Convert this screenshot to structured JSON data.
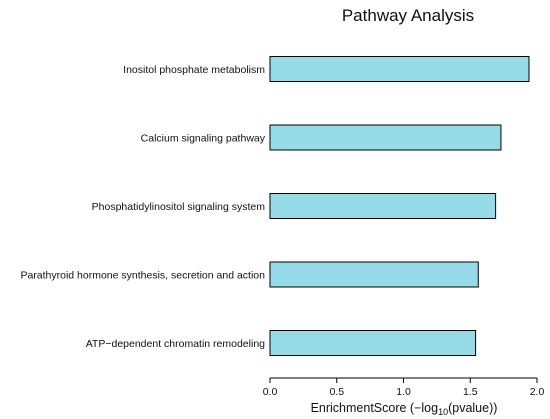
{
  "chart_data": {
    "type": "bar",
    "orientation": "horizontal",
    "title": "Pathway Analysis",
    "xlabel": {
      "prefix": "EnrichmentScore (−log",
      "subscript": "10",
      "suffix": "(pvalue))"
    },
    "ylabel": "",
    "categories": [
      "Inositol phosphate metabolism",
      "Calcium signaling pathway",
      "Phosphatidylinositol signaling system",
      "Parathyroid hormone synthesis, secretion and action",
      "ATP−dependent chromatin remodeling"
    ],
    "values": [
      1.94,
      1.73,
      1.69,
      1.56,
      1.54
    ],
    "xlim": [
      0,
      2.0
    ],
    "xticks": [
      "0.0",
      "0.5",
      "1.0",
      "1.5",
      "2.0"
    ],
    "grid": false,
    "legend": "none",
    "colors": {
      "bar_fill": "#96dbe8",
      "bar_stroke": "#000000",
      "text": "#111111",
      "axis": "#000000"
    }
  }
}
